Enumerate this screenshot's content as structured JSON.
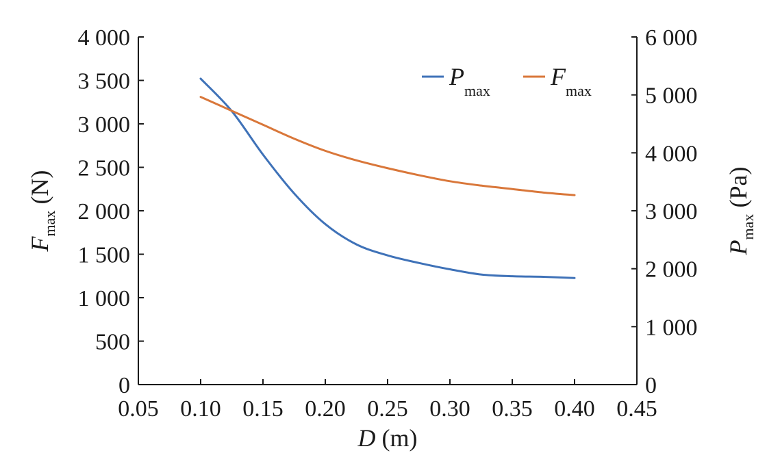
{
  "chart_data": {
    "type": "line",
    "x": [
      0.1,
      0.125,
      0.15,
      0.175,
      0.2,
      0.225,
      0.25,
      0.275,
      0.3,
      0.325,
      0.35,
      0.375,
      0.4
    ],
    "xlim": [
      0.05,
      0.45
    ],
    "xticks": [
      "0.05",
      "0.10",
      "0.15",
      "0.20",
      "0.25",
      "0.30",
      "0.35",
      "0.40",
      "0.45"
    ],
    "xtick_values": [
      0.05,
      0.1,
      0.15,
      0.2,
      0.25,
      0.3,
      0.35,
      0.4,
      0.45
    ],
    "xlabel": {
      "symbol": "D",
      "unit": " (m)"
    },
    "y_left": {
      "lim": [
        0,
        4000
      ],
      "tick_values": [
        0,
        500,
        1000,
        1500,
        2000,
        2500,
        3000,
        3500,
        4000
      ],
      "ticks": [
        "0",
        "500",
        "1 000",
        "1 500",
        "2 000",
        "2 500",
        "3 000",
        "3 500",
        "4 000"
      ],
      "label": {
        "symbol": "F",
        "sub": "max",
        "unit": " (N)"
      }
    },
    "y_right": {
      "lim": [
        0,
        6000
      ],
      "tick_values": [
        0,
        1000,
        2000,
        3000,
        4000,
        5000,
        6000
      ],
      "ticks": [
        "0",
        "1 000",
        "2 000",
        "3 000",
        "4 000",
        "5 000",
        "6 000"
      ],
      "label": {
        "symbol": "P",
        "sub": "max",
        "unit": " (Pa)"
      }
    },
    "series": [
      {
        "name": "Pmax",
        "legend_symbol": "P",
        "legend_sub": "max",
        "axis": "right",
        "color": "#3f72b8",
        "values": [
          5280,
          4720,
          3970,
          3300,
          2770,
          2420,
          2230,
          2100,
          1990,
          1900,
          1870,
          1860,
          1840
        ]
      },
      {
        "name": "Fmax",
        "legend_symbol": "F",
        "legend_sub": "max",
        "axis": "left",
        "color": "#d9773a",
        "values": [
          3310,
          3150,
          2990,
          2830,
          2690,
          2580,
          2490,
          2410,
          2340,
          2290,
          2250,
          2210,
          2180
        ]
      }
    ],
    "legend_position": "top-right",
    "grid": false
  }
}
